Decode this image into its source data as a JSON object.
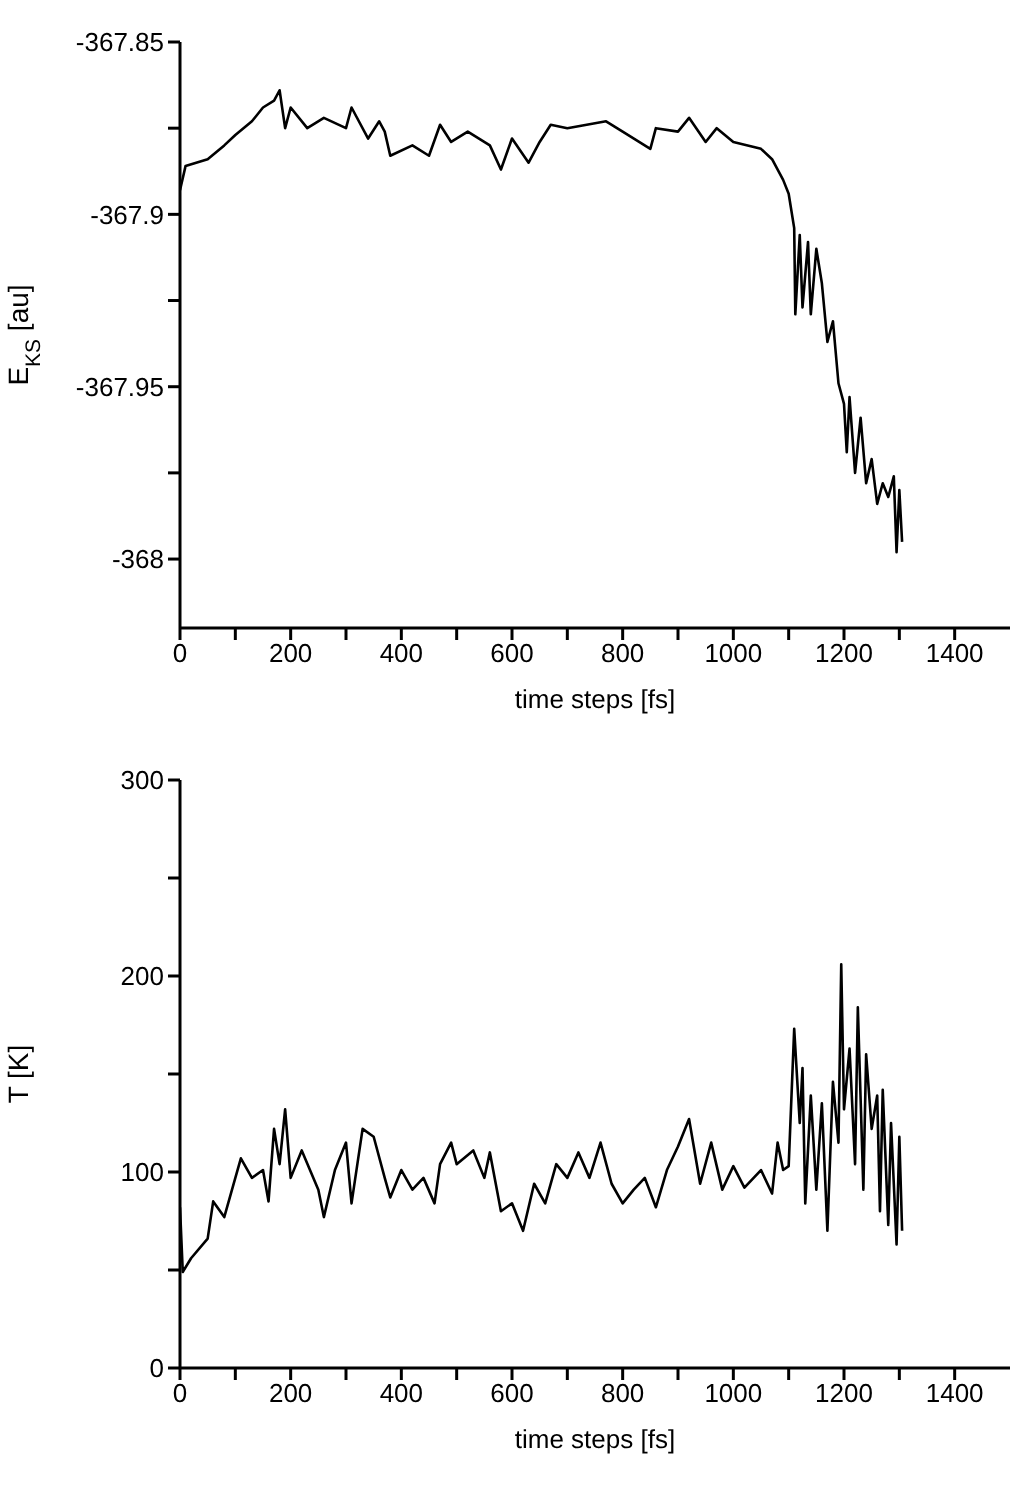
{
  "chart_data": [
    {
      "type": "line",
      "xlabel": "time steps [fs]",
      "ylabel": "E$_{KS}$ [au]",
      "xlim": [
        0,
        1500
      ],
      "xticks": [
        0,
        {
          "value": 100,
          "label": null
        },
        200,
        {
          "value": 300,
          "label": null
        },
        400,
        {
          "value": 500,
          "label": null
        },
        600,
        {
          "value": 700,
          "label": null
        },
        800,
        {
          "value": 900,
          "label": null
        },
        1000,
        {
          "value": 1100,
          "label": null
        },
        1200,
        {
          "value": 1300,
          "label": null
        },
        1400
      ],
      "ylim": [
        -368.02,
        -367.85
      ],
      "yticks": [
        -368,
        {
          "value": -367.975,
          "label": null
        },
        -367.95,
        {
          "value": -367.925,
          "label": null
        },
        -367.9,
        {
          "value": -367.875,
          "label": null
        },
        -367.85
      ],
      "marker": "none",
      "line_style": "solid",
      "series": [
        {
          "color": "#000000",
          "x": [
            0,
            10,
            50,
            80,
            100,
            130,
            150,
            170,
            180,
            190,
            200,
            230,
            260,
            300,
            310,
            340,
            360,
            370,
            380,
            420,
            450,
            470,
            490,
            520,
            560,
            580,
            600,
            630,
            650,
            670,
            700,
            770,
            800,
            850,
            860,
            900,
            920,
            950,
            970,
            1000,
            1050,
            1070,
            1090,
            1100,
            1110,
            1112,
            1120,
            1125,
            1135,
            1140,
            1150,
            1160,
            1170,
            1180,
            1190,
            1200,
            1205,
            1210,
            1220,
            1230,
            1240,
            1250,
            1260,
            1270,
            1280,
            1290,
            1295,
            1300,
            1305
          ],
          "values": [
            -367.893,
            -367.886,
            -367.884,
            -367.88,
            -367.877,
            -367.873,
            -367.869,
            -367.867,
            -367.864,
            -367.875,
            -367.869,
            -367.875,
            -367.872,
            -367.875,
            -367.869,
            -367.878,
            -367.873,
            -367.876,
            -367.883,
            -367.88,
            -367.883,
            -367.874,
            -367.879,
            -367.876,
            -367.88,
            -367.887,
            -367.878,
            -367.885,
            -367.879,
            -367.874,
            -367.875,
            -367.873,
            -367.876,
            -367.881,
            -367.875,
            -367.876,
            -367.872,
            -367.879,
            -367.875,
            -367.879,
            -367.881,
            -367.884,
            -367.89,
            -367.894,
            -367.904,
            -367.929,
            -367.906,
            -367.927,
            -367.908,
            -367.929,
            -367.91,
            -367.92,
            -367.937,
            -367.931,
            -367.949,
            -367.955,
            -367.969,
            -367.953,
            -367.975,
            -367.959,
            -367.978,
            -367.971,
            -367.984,
            -367.978,
            -367.982,
            -367.976,
            -367.998,
            -367.98,
            -367.995
          ]
        }
      ]
    },
    {
      "type": "line",
      "xlabel": "time steps [fs]",
      "ylabel": "T [K]",
      "xlim": [
        0,
        1500
      ],
      "xticks": [
        0,
        {
          "value": 100,
          "label": null
        },
        200,
        {
          "value": 300,
          "label": null
        },
        400,
        {
          "value": 500,
          "label": null
        },
        600,
        {
          "value": 700,
          "label": null
        },
        800,
        {
          "value": 900,
          "label": null
        },
        1000,
        {
          "value": 1100,
          "label": null
        },
        1200,
        {
          "value": 1300,
          "label": null
        },
        1400
      ],
      "ylim": [
        0,
        300
      ],
      "yticks": [
        0,
        {
          "value": 50,
          "label": null
        },
        100,
        {
          "value": 150,
          "label": null
        },
        200,
        {
          "value": 250,
          "label": null
        },
        300
      ],
      "marker": "none",
      "line_style": "solid",
      "series": [
        {
          "color": "#000000",
          "x": [
            0,
            5,
            20,
            50,
            60,
            80,
            100,
            110,
            130,
            150,
            160,
            170,
            180,
            190,
            200,
            220,
            250,
            260,
            280,
            300,
            310,
            330,
            350,
            370,
            380,
            400,
            420,
            440,
            460,
            470,
            490,
            500,
            530,
            550,
            560,
            580,
            600,
            620,
            640,
            660,
            680,
            700,
            720,
            740,
            760,
            780,
            800,
            820,
            840,
            860,
            880,
            900,
            920,
            940,
            960,
            980,
            1000,
            1020,
            1050,
            1070,
            1080,
            1090,
            1100,
            1110,
            1120,
            1125,
            1130,
            1140,
            1150,
            1160,
            1170,
            1180,
            1190,
            1195,
            1200,
            1210,
            1220,
            1225,
            1235,
            1240,
            1250,
            1260,
            1265,
            1270,
            1280,
            1285,
            1295,
            1300,
            1305
          ],
          "values": [
            82,
            49,
            56,
            66,
            85,
            77,
            97,
            107,
            97,
            101,
            85,
            122,
            104,
            132,
            97,
            111,
            91,
            77,
            101,
            115,
            84,
            122,
            118,
            97,
            87,
            101,
            91,
            97,
            84,
            104,
            115,
            104,
            111,
            97,
            110,
            80,
            84,
            70,
            94,
            84,
            104,
            97,
            110,
            97,
            115,
            94,
            84,
            91,
            97,
            82,
            101,
            113,
            127,
            94,
            115,
            91,
            103,
            92,
            101,
            89,
            115,
            101,
            103,
            173,
            125,
            153,
            84,
            139,
            91,
            135,
            70,
            146,
            115,
            206,
            132,
            163,
            104,
            184,
            91,
            160,
            122,
            139,
            80,
            142,
            73,
            125,
            63,
            118,
            70
          ]
        }
      ]
    }
  ]
}
